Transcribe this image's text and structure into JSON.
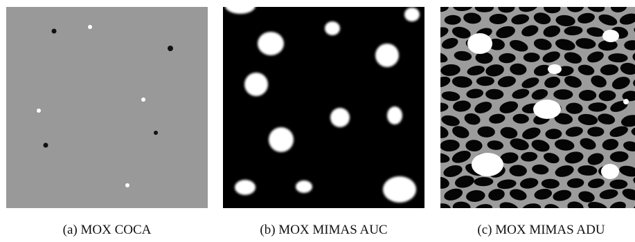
{
  "figure": {
    "panels": [
      {
        "id": "a",
        "caption": "(a)  MOX COCA",
        "background": "#999999",
        "dot_light": "#ffffff",
        "dot_dark": "#111111"
      },
      {
        "id": "b",
        "caption": "(b)  MOX MIMAS AUC",
        "background": "#000000",
        "blob_color": "#ffffff"
      },
      {
        "id": "c",
        "caption": "(c)  MOX MIMAS ADU",
        "background": "#9c9c9c",
        "grain_color": "#050505",
        "blob_color": "#ffffff"
      }
    ]
  }
}
